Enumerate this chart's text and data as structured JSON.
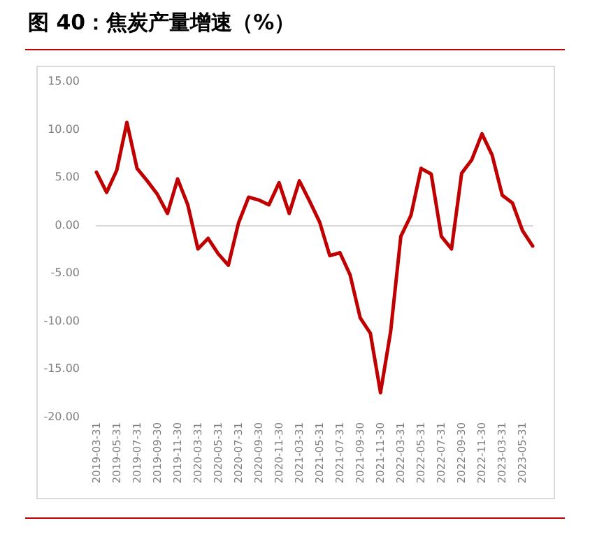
{
  "chart_data": {
    "type": "line",
    "title": "图 40：焦炭产量增速（%）",
    "categories": [
      "2019-03-31",
      null,
      "2019-05-31",
      null,
      "2019-07-31",
      null,
      "2019-09-30",
      null,
      "2019-11-30",
      null,
      "2020-03-31",
      null,
      "2020-05-31",
      null,
      "2020-07-31",
      null,
      "2020-09-30",
      null,
      "2020-11-30",
      null,
      "2021-03-31",
      null,
      "2021-05-31",
      null,
      "2021-07-31",
      null,
      "2021-09-30",
      null,
      "2021-11-30",
      null,
      "2022-03-31",
      null,
      "2022-05-31",
      null,
      "2022-07-31",
      null,
      "2022-09-30",
      null,
      "2022-11-30",
      null,
      "2023-03-31",
      null,
      "2023-05-31",
      null
    ],
    "series": [
      {
        "color": "#c00000",
        "values": [
          5.5,
          3.4,
          5.7,
          10.7,
          5.9,
          4.6,
          3.2,
          1.2,
          4.8,
          2.1,
          -2.5,
          -1.4,
          -3.0,
          -4.2,
          0.2,
          2.9,
          2.6,
          2.1,
          4.4,
          1.2,
          4.6,
          2.5,
          0.3,
          -3.2,
          -2.9,
          -5.2,
          -9.7,
          -11.3,
          -17.5,
          -11.1,
          -1.2,
          1.0,
          5.9,
          5.3,
          -1.2,
          -2.5,
          5.4,
          6.8,
          9.5,
          7.3,
          3.1,
          2.3,
          -0.6,
          -2.2
        ]
      }
    ],
    "ylim": [
      -20,
      15
    ],
    "yticks": [
      {
        "value": -20,
        "label": "-20.00"
      },
      {
        "value": -15,
        "label": "-15.00"
      },
      {
        "value": -10,
        "label": "-10.00"
      },
      {
        "value": -5,
        "label": "-5.00"
      },
      {
        "value": 0,
        "label": "0.00"
      },
      {
        "value": 5,
        "label": "5.00"
      },
      {
        "value": 10,
        "label": "10.00"
      },
      {
        "value": 15,
        "label": "15.00"
      }
    ],
    "line_style": "solid"
  }
}
